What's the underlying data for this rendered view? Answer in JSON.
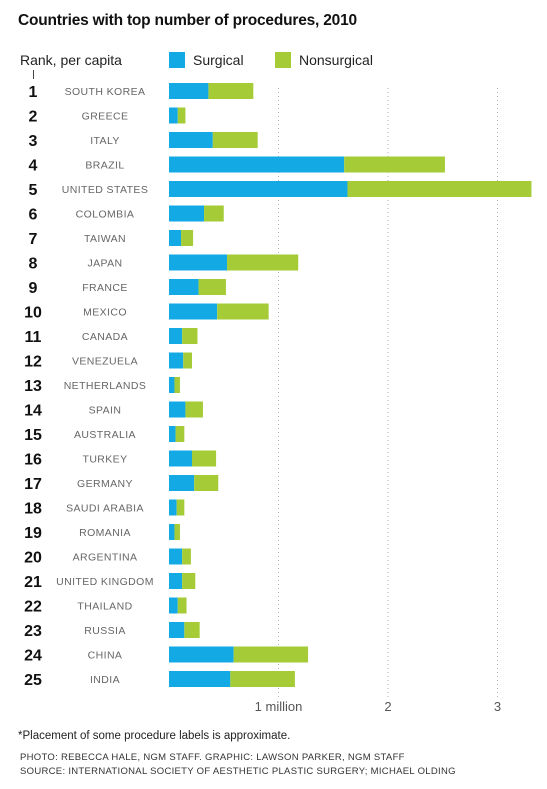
{
  "title": "Countries with top number of procedures, 2010",
  "rank_header": "Rank, per capita",
  "legend": [
    {
      "label": "Surgical",
      "color": "#12a9e5"
    },
    {
      "label": "Nonsurgical",
      "color": "#a5cc37"
    }
  ],
  "footnote": "*Placement of some procedure labels is approximate.",
  "credits": [
    "PHOTO: REBECCA HALE, NGM STAFF. GRAPHIC: LAWSON PARKER, NGM STAFF",
    "SOURCE: INTERNATIONAL SOCIETY OF AESTHETIC PLASTIC SURGERY; MICHAEL OLDING"
  ],
  "chart_data": {
    "type": "bar",
    "orientation": "horizontal",
    "stacked": true,
    "title": "Countries with top number of procedures, 2010",
    "xlim": [
      0,
      3.3
    ],
    "x_ticks": [
      1,
      2,
      3
    ],
    "x_tick_labels": [
      "1 million",
      "2",
      "3"
    ],
    "grid": "vertical dotted lines at tick values",
    "legend_position": "top",
    "categories": [
      "SOUTH KOREA",
      "GREECE",
      "ITALY",
      "BRAZIL",
      "UNITED STATES",
      "COLOMBIA",
      "TAIWAN",
      "JAPAN",
      "FRANCE",
      "MEXICO",
      "CANADA",
      "VENEZUELA",
      "NETHERLANDS",
      "SPAIN",
      "AUSTRALIA",
      "TURKEY",
      "GERMANY",
      "SAUDI ARABIA",
      "ROMANIA",
      "ARGENTINA",
      "UNITED KINGDOM",
      "THAILAND",
      "RUSSIA",
      "CHINA",
      "INDIA"
    ],
    "ranks": [
      "1",
      "2",
      "3",
      "4",
      "5",
      "6",
      "7",
      "8",
      "9",
      "10",
      "11",
      "12",
      "13",
      "14",
      "15",
      "16",
      "17",
      "18",
      "19",
      "20",
      "21",
      "22",
      "23",
      "24",
      "25"
    ],
    "series": [
      {
        "name": "Surgical",
        "color": "#12a9e5",
        "values": [
          0.36,
          0.08,
          0.4,
          1.6,
          1.63,
          0.32,
          0.11,
          0.53,
          0.27,
          0.44,
          0.12,
          0.13,
          0.05,
          0.15,
          0.06,
          0.21,
          0.23,
          0.07,
          0.05,
          0.12,
          0.12,
          0.08,
          0.14,
          0.59,
          0.56
        ]
      },
      {
        "name": "Nonsurgical",
        "color": "#a5cc37",
        "values": [
          0.41,
          0.07,
          0.41,
          0.92,
          1.68,
          0.18,
          0.11,
          0.65,
          0.25,
          0.47,
          0.14,
          0.08,
          0.05,
          0.16,
          0.08,
          0.22,
          0.22,
          0.07,
          0.05,
          0.08,
          0.12,
          0.08,
          0.14,
          0.68,
          0.59
        ]
      }
    ]
  }
}
